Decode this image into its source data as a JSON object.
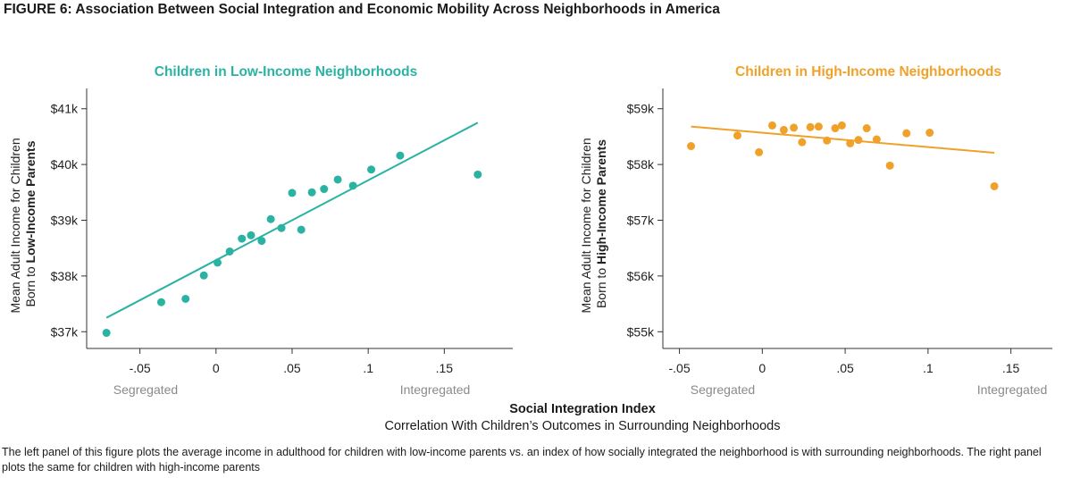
{
  "figure": {
    "title": "FIGURE 6: Association Between Social Integration and Economic Mobility Across Neighborhoods in America",
    "title_color": "#2ab3a3",
    "xlabel": "Social Integration Index",
    "xsublabel": "Correlation With Children’s Outcomes in Surrounding Neighborhoods",
    "caption": "The left panel of this figure plots the average income in adulthood for children with low-income parents vs. an index of how socially integrated the neighborhood is with surrounding neighborhoods. The right panel plots the same for children with high-income parents"
  },
  "chart_data": [
    {
      "type": "scatter",
      "title": "Children in Low-Income Neighborhoods",
      "color": "#2ab3a3",
      "ylabel_plain": "Mean Adult Income for Children",
      "ylabel_prefix": "Born to ",
      "ylabel_bold": "Low-Income Parents",
      "xlim": [
        -0.085,
        0.195
      ],
      "ylim": [
        36.7,
        41.3
      ],
      "xticks": [
        -0.05,
        0,
        0.05,
        0.1,
        0.15
      ],
      "xtick_labels": [
        "-.05",
        "0",
        ".05",
        ".1",
        ".15"
      ],
      "yticks": [
        37,
        38,
        39,
        40,
        41
      ],
      "ytick_labels": [
        "$37k",
        "$38k",
        "$39k",
        "$40k",
        "$41k"
      ],
      "x_low_label": "Segregated",
      "x_high_label": "Integregated",
      "points": [
        {
          "x": -0.072,
          "y": 36.98
        },
        {
          "x": -0.036,
          "y": 37.53
        },
        {
          "x": -0.02,
          "y": 37.59
        },
        {
          "x": -0.008,
          "y": 38.01
        },
        {
          "x": 0.001,
          "y": 38.24
        },
        {
          "x": 0.009,
          "y": 38.44
        },
        {
          "x": 0.017,
          "y": 38.67
        },
        {
          "x": 0.023,
          "y": 38.73
        },
        {
          "x": 0.03,
          "y": 38.63
        },
        {
          "x": 0.036,
          "y": 39.02
        },
        {
          "x": 0.043,
          "y": 38.86
        },
        {
          "x": 0.05,
          "y": 39.49
        },
        {
          "x": 0.056,
          "y": 38.83
        },
        {
          "x": 0.063,
          "y": 39.5
        },
        {
          "x": 0.071,
          "y": 39.56
        },
        {
          "x": 0.08,
          "y": 39.73
        },
        {
          "x": 0.09,
          "y": 39.62
        },
        {
          "x": 0.102,
          "y": 39.91
        },
        {
          "x": 0.121,
          "y": 40.16
        },
        {
          "x": 0.172,
          "y": 39.82
        }
      ],
      "fit": {
        "x": [
          -0.072,
          0.172
        ],
        "y": [
          37.25,
          40.75
        ]
      }
    },
    {
      "type": "scatter",
      "title": "Children in High-Income Neighborhoods",
      "color": "#f0a12a",
      "ylabel_plain": "Mean Adult Income for Children",
      "ylabel_prefix": "Born to ",
      "ylabel_bold": "High-Income Parents",
      "xlim": [
        -0.06,
        0.175
      ],
      "ylim": [
        54.7,
        59.3
      ],
      "xticks": [
        -0.05,
        0,
        0.05,
        0.1,
        0.15
      ],
      "xtick_labels": [
        "-.05",
        "0",
        ".05",
        ".1",
        ".15"
      ],
      "yticks": [
        55,
        56,
        57,
        58,
        59
      ],
      "ytick_labels": [
        "$55k",
        "$56k",
        "$57k",
        "$58k",
        "$59k"
      ],
      "x_low_label": "Segregated",
      "x_high_label": "Integregated",
      "points": [
        {
          "x": -0.043,
          "y": 58.33
        },
        {
          "x": -0.015,
          "y": 58.52
        },
        {
          "x": -0.002,
          "y": 58.22
        },
        {
          "x": 0.006,
          "y": 58.7
        },
        {
          "x": 0.013,
          "y": 58.62
        },
        {
          "x": 0.019,
          "y": 58.66
        },
        {
          "x": 0.024,
          "y": 58.4
        },
        {
          "x": 0.029,
          "y": 58.67
        },
        {
          "x": 0.034,
          "y": 58.68
        },
        {
          "x": 0.039,
          "y": 58.43
        },
        {
          "x": 0.044,
          "y": 58.65
        },
        {
          "x": 0.048,
          "y": 58.7
        },
        {
          "x": 0.053,
          "y": 58.38
        },
        {
          "x": 0.058,
          "y": 58.44
        },
        {
          "x": 0.063,
          "y": 58.65
        },
        {
          "x": 0.069,
          "y": 58.45
        },
        {
          "x": 0.077,
          "y": 57.98
        },
        {
          "x": 0.087,
          "y": 58.56
        },
        {
          "x": 0.101,
          "y": 58.57
        },
        {
          "x": 0.14,
          "y": 57.61
        }
      ],
      "fit": {
        "x": [
          -0.043,
          0.14
        ],
        "y": [
          58.68,
          58.21
        ]
      }
    }
  ]
}
